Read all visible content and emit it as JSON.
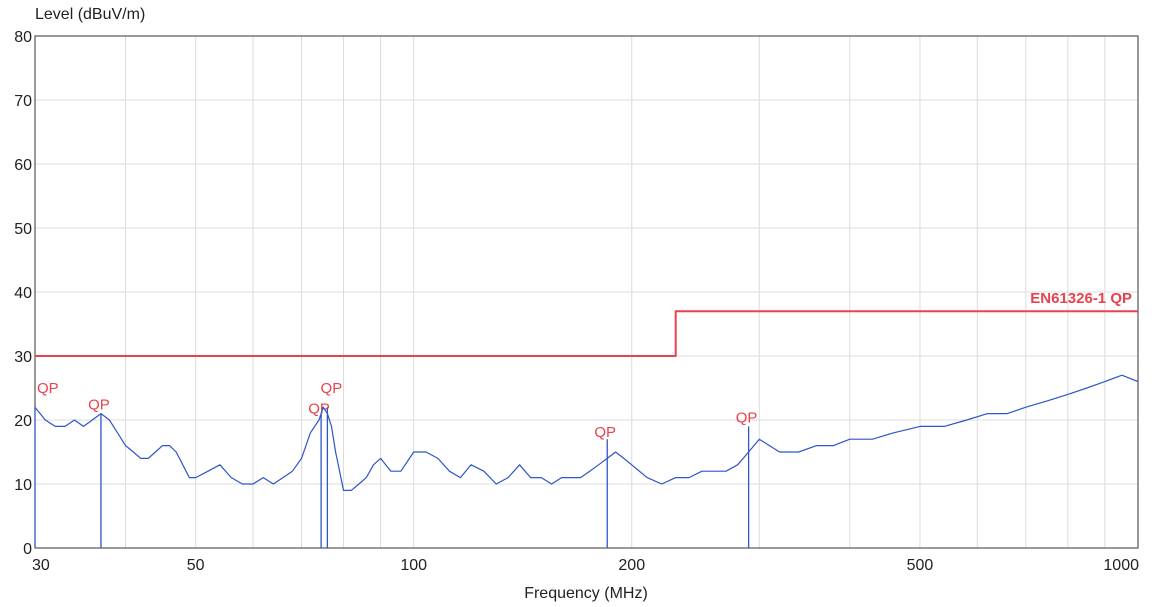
{
  "chart_data": {
    "type": "line",
    "title": "",
    "ylabel": "Level (dBuV/m)",
    "xlabel": "Frequency (MHz)",
    "x_scale": "log",
    "xlim": [
      30,
      1000
    ],
    "ylim": [
      0,
      80
    ],
    "x_ticks": [
      30,
      50,
      100,
      200,
      500,
      1000
    ],
    "x_tick_labels": [
      "30",
      "50",
      "100",
      "200",
      "500",
      "1000"
    ],
    "y_ticks": [
      0,
      10,
      20,
      30,
      40,
      50,
      60,
      70,
      80
    ],
    "y_tick_labels": [
      "0",
      "10",
      "20",
      "30",
      "40",
      "50",
      "60",
      "70",
      "80"
    ],
    "grid": true,
    "colors": {
      "limit": "#e8414f",
      "trace": "#2f55c7",
      "markers": "#2f55c7",
      "marker_labels": "#e8414f",
      "grid": "#dcdcdc"
    },
    "series": [
      {
        "name": "EN61326-1 QP",
        "kind": "limit",
        "x": [
          30,
          230,
          230,
          1000
        ],
        "y": [
          30,
          30,
          37,
          37
        ]
      },
      {
        "kind": "measurement",
        "x": [
          30,
          31,
          32,
          33,
          34,
          35,
          36,
          37,
          38,
          39,
          40,
          41,
          42,
          43,
          44,
          45,
          46,
          47,
          48,
          49,
          50,
          52,
          54,
          56,
          58,
          60,
          62,
          64,
          66,
          68,
          70,
          72,
          74,
          75,
          76,
          77,
          78,
          79,
          80,
          82,
          84,
          86,
          88,
          90,
          93,
          96,
          100,
          104,
          108,
          112,
          116,
          120,
          125,
          130,
          135,
          140,
          145,
          150,
          155,
          160,
          165,
          170,
          175,
          180,
          185,
          190,
          195,
          200,
          210,
          220,
          230,
          240,
          250,
          260,
          270,
          280,
          290,
          300,
          320,
          340,
          360,
          380,
          400,
          430,
          460,
          500,
          540,
          580,
          620,
          660,
          700,
          750,
          800,
          850,
          900,
          950,
          1000
        ],
        "y": [
          22,
          20,
          19,
          19,
          20,
          19,
          20,
          21,
          20,
          18,
          16,
          15,
          14,
          14,
          15,
          16,
          16,
          15,
          13,
          11,
          11,
          12,
          13,
          11,
          10,
          10,
          11,
          10,
          11,
          12,
          14,
          18,
          20,
          22,
          21,
          19,
          15,
          12,
          9,
          9,
          10,
          11,
          13,
          14,
          12,
          12,
          15,
          15,
          14,
          12,
          11,
          13,
          12,
          10,
          11,
          13,
          11,
          11,
          10,
          11,
          11,
          11,
          12,
          13,
          14,
          15,
          14,
          13,
          11,
          10,
          11,
          11,
          12,
          12,
          12,
          13,
          15,
          17,
          15,
          15,
          16,
          16,
          17,
          17,
          18,
          19,
          19,
          20,
          21,
          21,
          22,
          23,
          24,
          25,
          26,
          27,
          26
        ]
      }
    ],
    "markers": [
      {
        "label": "QP",
        "x": 30,
        "y": 22
      },
      {
        "label": "QP",
        "x": 37,
        "y": 21
      },
      {
        "label": "QP",
        "x": 74.5,
        "y": 21
      },
      {
        "label": "QP",
        "x": 76,
        "y": 22
      },
      {
        "label": "QP",
        "x": 185,
        "y": 17
      },
      {
        "label": "QP",
        "x": 290,
        "y": 19
      }
    ]
  }
}
